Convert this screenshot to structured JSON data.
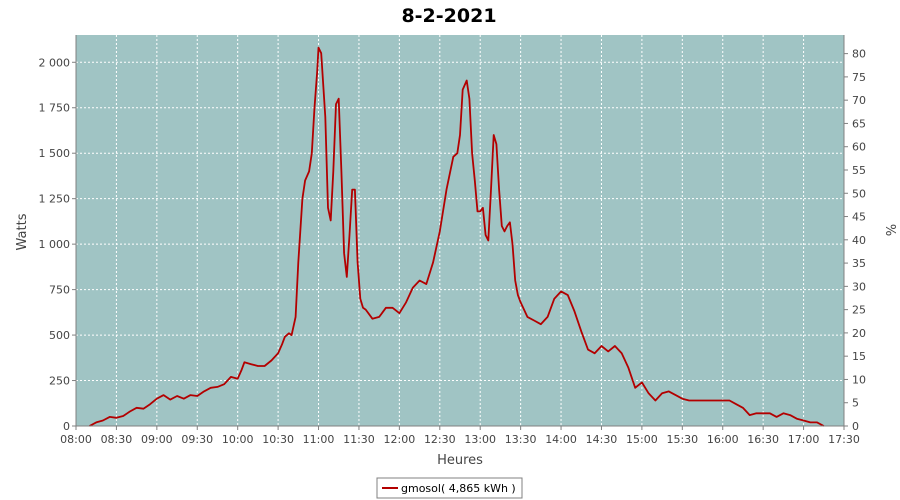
{
  "chart_data": {
    "type": "line",
    "title": "8-2-2021",
    "xlabel": "Heures",
    "ylabel": "Watts",
    "y2label": "%",
    "x_ticks": [
      "08:00",
      "08:30",
      "09:00",
      "09:30",
      "10:00",
      "10:30",
      "11:00",
      "11:30",
      "12:00",
      "12:30",
      "13:00",
      "13:30",
      "14:00",
      "14:30",
      "15:00",
      "15:30",
      "16:00",
      "16:30",
      "17:00",
      "17:30"
    ],
    "y_ticks": [
      "0",
      "250",
      "500",
      "750",
      "1 000",
      "1 250",
      "1 500",
      "1 750",
      "2 000"
    ],
    "y2_ticks": [
      "0",
      "5",
      "10",
      "15",
      "20",
      "25",
      "30",
      "35",
      "40",
      "45",
      "50",
      "55",
      "60",
      "65",
      "70",
      "75",
      "80"
    ],
    "xlim": [
      "08:00",
      "17:30"
    ],
    "ylim": [
      0,
      2150
    ],
    "y2lim": [
      0,
      84
    ],
    "grid": true,
    "legend_position": "bottom",
    "colors": {
      "plot_background": "#a0c4c4",
      "series": "#b30000",
      "grid": "#ffffff"
    },
    "series": [
      {
        "name": "gmosol( 4,865 kWh )",
        "x": [
          "08:10",
          "08:15",
          "08:20",
          "08:25",
          "08:30",
          "08:35",
          "08:40",
          "08:45",
          "08:50",
          "08:55",
          "09:00",
          "09:05",
          "09:10",
          "09:15",
          "09:20",
          "09:25",
          "09:30",
          "09:35",
          "09:40",
          "09:45",
          "09:50",
          "09:55",
          "10:00",
          "10:03",
          "10:05",
          "10:10",
          "10:15",
          "10:20",
          "10:25",
          "10:30",
          "10:33",
          "10:35",
          "10:38",
          "10:40",
          "10:43",
          "10:45",
          "10:48",
          "10:50",
          "10:53",
          "10:55",
          "10:57",
          "10:59",
          "11:00",
          "11:02",
          "11:05",
          "11:07",
          "11:09",
          "11:11",
          "11:13",
          "11:15",
          "11:17",
          "11:19",
          "11:21",
          "11:23",
          "11:25",
          "11:27",
          "11:29",
          "11:31",
          "11:33",
          "11:35",
          "11:40",
          "11:45",
          "11:50",
          "11:55",
          "12:00",
          "12:05",
          "12:10",
          "12:15",
          "12:20",
          "12:25",
          "12:30",
          "12:35",
          "12:40",
          "12:43",
          "12:45",
          "12:47",
          "12:50",
          "12:52",
          "12:54",
          "12:56",
          "12:58",
          "13:00",
          "13:02",
          "13:04",
          "13:06",
          "13:08",
          "13:10",
          "13:12",
          "13:14",
          "13:16",
          "13:18",
          "13:20",
          "13:22",
          "13:24",
          "13:26",
          "13:28",
          "13:30",
          "13:35",
          "13:40",
          "13:45",
          "13:50",
          "13:55",
          "14:00",
          "14:05",
          "14:10",
          "14:15",
          "14:20",
          "14:25",
          "14:30",
          "14:35",
          "14:40",
          "14:45",
          "14:50",
          "14:55",
          "15:00",
          "15:05",
          "15:10",
          "15:15",
          "15:20",
          "15:25",
          "15:30",
          "15:35",
          "15:40",
          "15:45",
          "15:50",
          "15:55",
          "16:00",
          "16:05",
          "16:10",
          "16:15",
          "16:20",
          "16:25",
          "16:30",
          "16:35",
          "16:40",
          "16:45",
          "16:50",
          "16:55",
          "17:00",
          "17:05",
          "17:10",
          "17:15"
        ],
        "values": [
          0,
          20,
          30,
          50,
          45,
          55,
          80,
          100,
          95,
          120,
          150,
          170,
          145,
          165,
          150,
          170,
          165,
          190,
          210,
          215,
          230,
          270,
          260,
          310,
          350,
          340,
          330,
          330,
          360,
          400,
          450,
          490,
          510,
          500,
          600,
          900,
          1250,
          1350,
          1400,
          1500,
          1750,
          1950,
          2080,
          2050,
          1700,
          1200,
          1130,
          1400,
          1770,
          1800,
          1400,
          950,
          820,
          1050,
          1300,
          1300,
          900,
          700,
          650,
          640,
          590,
          600,
          650,
          650,
          620,
          680,
          760,
          800,
          780,
          900,
          1070,
          1300,
          1480,
          1500,
          1600,
          1850,
          1900,
          1800,
          1500,
          1350,
          1180,
          1180,
          1200,
          1050,
          1020,
          1300,
          1600,
          1550,
          1300,
          1100,
          1070,
          1100,
          1120,
          1000,
          800,
          720,
          680,
          600,
          580,
          560,
          600,
          700,
          740,
          720,
          630,
          520,
          420,
          400,
          440,
          410,
          440,
          400,
          320,
          210,
          240,
          180,
          140,
          180,
          190,
          170,
          150,
          140,
          140,
          140,
          140,
          140,
          140,
          140,
          120,
          100,
          60,
          70,
          70,
          70,
          50,
          70,
          60,
          40,
          30,
          20,
          20,
          0
        ]
      }
    ]
  }
}
